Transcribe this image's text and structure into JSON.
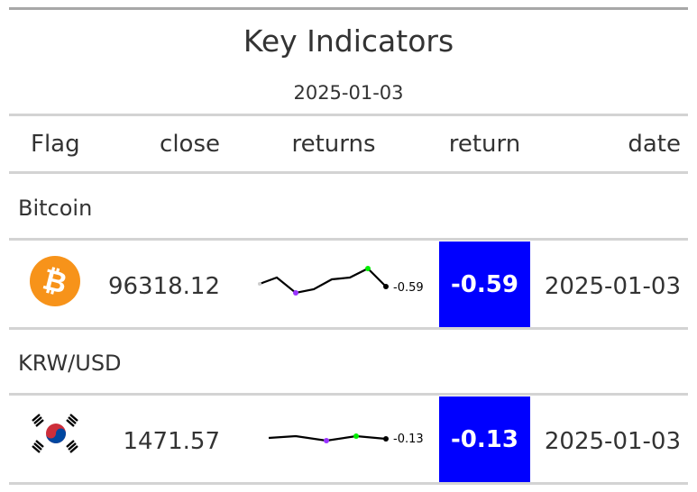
{
  "header": {
    "title": "Key Indicators",
    "subtitle": "2025-01-03"
  },
  "columns": {
    "flag": "Flag",
    "close": "close",
    "returns": "returns",
    "return": "return",
    "date": "date"
  },
  "rows": [
    {
      "group": "Bitcoin",
      "flag_icon": "bitcoin-icon",
      "close": "96318.12",
      "sparkline_label": "-0.59",
      "return": "-0.59",
      "date": "2025-01-03"
    },
    {
      "group": "KRW/USD",
      "flag_icon": "south-korea-flag-icon",
      "close": "1471.57",
      "sparkline_label": "-0.13",
      "return": "-0.13",
      "date": "2025-01-03"
    }
  ],
  "colors": {
    "return_bg": "#0000ff",
    "return_text": "#ffffff",
    "bitcoin": "#f7931a",
    "spark_min": "#9933ff",
    "spark_max": "#00ee00"
  }
}
